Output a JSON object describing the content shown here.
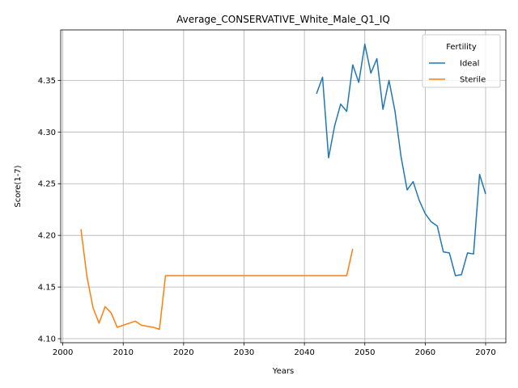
{
  "chart_data": {
    "type": "line",
    "title": "Average_CONSERVATIVE_White_Male_Q1_IQ",
    "xlabel": "Years",
    "ylabel": "Score(1-7)",
    "xlim": [
      1999.65,
      2073.35
    ],
    "ylim": [
      4.0961,
      4.3988
    ],
    "xticks": [
      2000,
      2010,
      2020,
      2030,
      2040,
      2050,
      2060,
      2070
    ],
    "xtick_labels": [
      "2000",
      "2010",
      "2020",
      "2030",
      "2040",
      "2050",
      "2060",
      "2070"
    ],
    "yticks": [
      4.1,
      4.15,
      4.2,
      4.25,
      4.3,
      4.35
    ],
    "ytick_labels": [
      "4.10",
      "4.15",
      "4.20",
      "4.25",
      "4.30",
      "4.35"
    ],
    "grid": true,
    "legend": {
      "title": "Fertility",
      "placement": "top-right"
    },
    "series": [
      {
        "name": "Ideal",
        "color": "#1f77b4",
        "x": [
          2042,
          2043,
          2044,
          2045,
          2046,
          2047,
          2048,
          2049,
          2050,
          2051,
          2052,
          2053,
          2054,
          2055,
          2056,
          2057,
          2058,
          2059,
          2060,
          2061,
          2062,
          2063,
          2064,
          2065,
          2066,
          2067,
          2068,
          2069,
          2070
        ],
        "y": [
          4.337,
          4.353,
          4.275,
          4.306,
          4.327,
          4.32,
          4.365,
          4.348,
          4.385,
          4.357,
          4.371,
          4.322,
          4.35,
          4.32,
          4.276,
          4.244,
          4.252,
          4.234,
          4.221,
          4.213,
          4.209,
          4.184,
          4.183,
          4.161,
          4.162,
          4.183,
          4.182,
          4.259,
          4.24
        ]
      },
      {
        "name": "Sterile",
        "color": "#ff7f0e",
        "x": [
          2003,
          2004,
          2005,
          2006,
          2007,
          2008,
          2009,
          2010,
          2011,
          2012,
          2013,
          2014,
          2015,
          2016,
          2017,
          2018,
          2019,
          2020,
          2021,
          2022,
          2023,
          2024,
          2025,
          2026,
          2027,
          2028,
          2029,
          2030,
          2031,
          2032,
          2033,
          2034,
          2035,
          2036,
          2037,
          2038,
          2039,
          2040,
          2041,
          2042,
          2043,
          2044,
          2045,
          2046,
          2047,
          2048
        ],
        "y": [
          4.206,
          4.16,
          4.13,
          4.115,
          4.131,
          4.125,
          4.111,
          4.113,
          4.115,
          4.117,
          4.113,
          4.112,
          4.111,
          4.109,
          4.161,
          4.161,
          4.161,
          4.161,
          4.161,
          4.161,
          4.161,
          4.161,
          4.161,
          4.161,
          4.161,
          4.161,
          4.161,
          4.161,
          4.161,
          4.161,
          4.161,
          4.161,
          4.161,
          4.161,
          4.161,
          4.161,
          4.161,
          4.161,
          4.161,
          4.161,
          4.161,
          4.161,
          4.161,
          4.161,
          4.161,
          4.187
        ]
      }
    ]
  }
}
